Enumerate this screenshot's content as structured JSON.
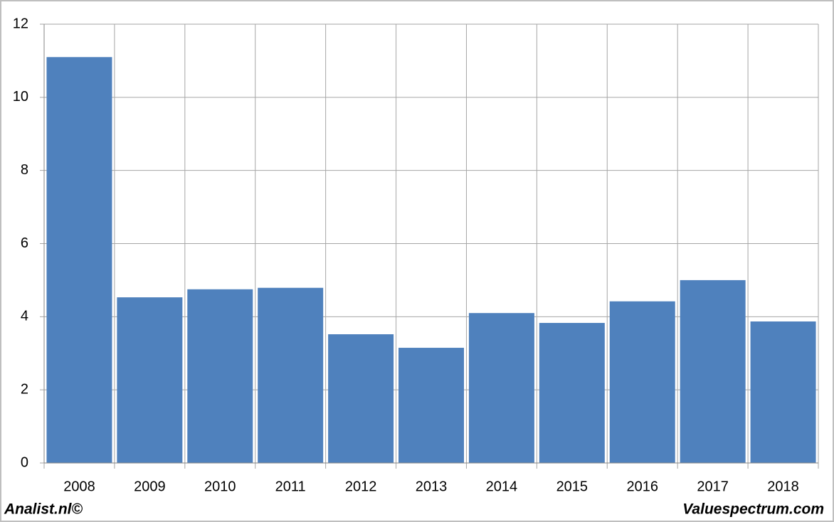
{
  "chart_data": {
    "type": "bar",
    "categories": [
      "2008",
      "2009",
      "2010",
      "2011",
      "2012",
      "2013",
      "2014",
      "2015",
      "2016",
      "2017",
      "2018"
    ],
    "values": [
      11.1,
      4.53,
      4.75,
      4.79,
      3.52,
      3.15,
      4.1,
      3.83,
      4.42,
      5.0,
      3.87
    ],
    "color": "#4f81bd",
    "ylim": [
      0,
      12
    ],
    "yticks": [
      0,
      2,
      4,
      6,
      8,
      10,
      12
    ],
    "grid": true,
    "annotations": [
      "Analist.nl©",
      "Valuespectrum.com"
    ]
  }
}
